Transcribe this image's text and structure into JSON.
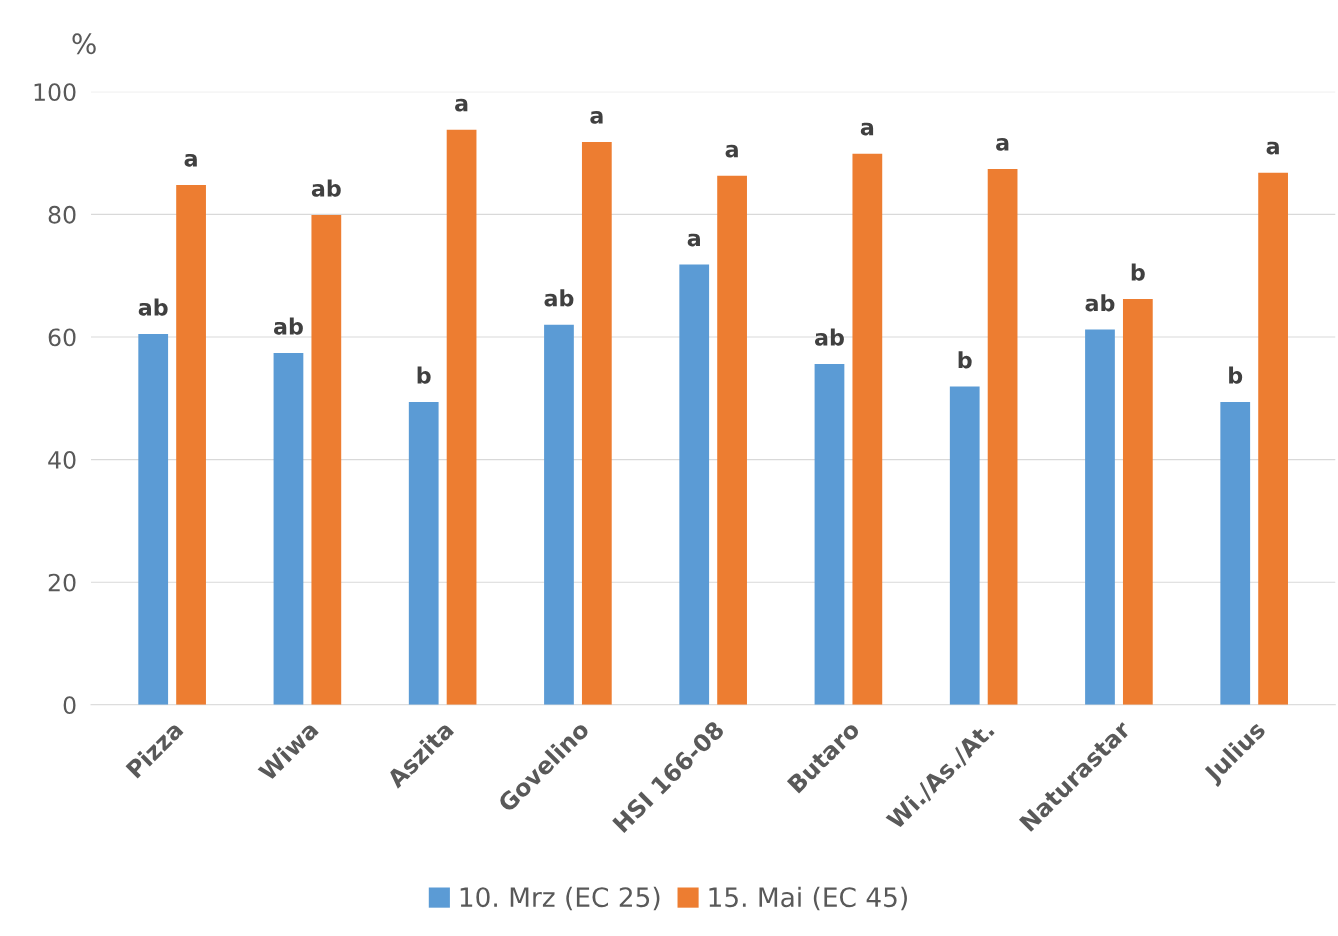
{
  "chart_data": {
    "type": "bar",
    "ylabel": "%",
    "categories": [
      "Pizza",
      "Wiwa",
      "Aszita",
      "Govelino",
      "HSI 166-08",
      "Butaro",
      "Wi./As./At.",
      "Naturastar",
      "Julius"
    ],
    "series": [
      {
        "name": "10. Mrz (EC 25)",
        "color": "#5b9bd5",
        "values": [
          60.5,
          57.4,
          49.4,
          62,
          71.8,
          55.6,
          51.9,
          61.2,
          49.4
        ],
        "value_labels": [
          "ab",
          "ab",
          "b",
          "ab",
          "a",
          "ab",
          "b",
          "ab",
          "b"
        ]
      },
      {
        "name": "15. Mai (EC 45)",
        "color": "#ed7d31",
        "values": [
          84.8,
          79.9,
          93.8,
          91.8,
          86.3,
          89.9,
          87.4,
          66.2,
          86.8
        ],
        "value_labels": [
          "a",
          "ab",
          "a",
          "a",
          "a",
          "a",
          "a",
          "b",
          "a"
        ]
      }
    ],
    "ylim": [
      0,
      100
    ],
    "yticks": [
      0,
      20,
      40,
      60,
      80,
      100
    ],
    "grid": "y",
    "legend": "bottom"
  }
}
